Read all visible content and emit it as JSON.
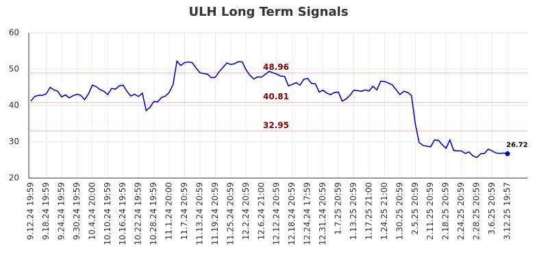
{
  "chart_data": {
    "type": "line",
    "title": "ULH Long Term Signals",
    "categories": [
      "9.12.24 19:59",
      null,
      null,
      null,
      "9.18.24 19:59",
      null,
      null,
      null,
      "9.24.24 19:59",
      null,
      null,
      null,
      "9.30.24 19:59",
      null,
      null,
      null,
      "10.4.24 20:00",
      null,
      null,
      null,
      "10.10.24 19:59",
      null,
      null,
      null,
      "10.16.24 19:59",
      null,
      null,
      null,
      "10.22.24 19:59",
      null,
      null,
      null,
      "10.28.24 19:59",
      null,
      null,
      null,
      "11.1.24 20:00",
      null,
      null,
      null,
      "11.7.24 20:59",
      null,
      null,
      null,
      "11.13.24 20:59",
      null,
      null,
      null,
      "11.19.24 20:59",
      null,
      null,
      null,
      "11.25.24 20:59",
      null,
      null,
      null,
      "12.2.24 20:59",
      null,
      null,
      null,
      "12.6.24 21:00",
      null,
      null,
      null,
      "12.12.24 20:59",
      null,
      null,
      null,
      "12.18.24 20:59",
      null,
      null,
      null,
      "12.24.24 17:59",
      null,
      null,
      null,
      "12.31.24 20:59",
      null,
      null,
      null,
      "1.7.25 20:59",
      null,
      null,
      null,
      "1.13.25 20:59",
      null,
      null,
      null,
      "1.17.25 21:00",
      null,
      null,
      null,
      "1.24.25 21:00",
      null,
      null,
      null,
      "1.30.25 20:59",
      null,
      null,
      null,
      "2.5.25 20:59",
      null,
      null,
      null,
      "2.11.25 20:59",
      null,
      null,
      null,
      "2.18.25 20:59",
      null,
      null,
      null,
      "2.24.25 20:59",
      null,
      null,
      null,
      "2.28.25 20:59",
      null,
      null,
      null,
      "3.6.25 20:59",
      null,
      null,
      null,
      "3.12.25 19:57"
    ],
    "series": [
      {
        "color": "#0000cc",
        "values": [
          41.2,
          42.5,
          42.8,
          42.8,
          43.2,
          45.0,
          44.3,
          43.9,
          42.4,
          42.9,
          42.1,
          42.7,
          43.1,
          42.8,
          41.6,
          43.2,
          45.6,
          45.2,
          44.4,
          43.9,
          43.0,
          44.7,
          44.5,
          45.4,
          45.6,
          43.9,
          42.6,
          43.1,
          42.5,
          43.4,
          38.6,
          39.5,
          41.1,
          41.0,
          42.2,
          42.6,
          43.6,
          45.8,
          52.2,
          51.0,
          51.8,
          52.0,
          51.8,
          50.3,
          49.0,
          48.8,
          48.6,
          47.6,
          47.8,
          49.3,
          50.5,
          51.7,
          51.3,
          51.5,
          52.1,
          52.0,
          49.8,
          48.3,
          47.3,
          47.9,
          47.8,
          48.6,
          49.4,
          49.0,
          48.6,
          48.1,
          48.0,
          45.4,
          45.8,
          46.3,
          45.6,
          47.2,
          47.5,
          46.1,
          46.0,
          43.7,
          44.2,
          43.4,
          43.0,
          43.6,
          43.7,
          41.2,
          41.8,
          42.8,
          44.2,
          44.1,
          43.9,
          44.3,
          44.0,
          45.3,
          44.3,
          46.7,
          46.6,
          46.2,
          45.7,
          44.4,
          43.0,
          43.9,
          43.6,
          42.8,
          35.0,
          29.8,
          29.0,
          28.8,
          28.6,
          30.5,
          30.4,
          29.2,
          28.2,
          30.5,
          27.6,
          27.5,
          27.5,
          26.8,
          27.2,
          26.1,
          25.7,
          26.7,
          26.8,
          28.0,
          27.5,
          26.9,
          26.8,
          26.9,
          26.72
        ]
      }
    ],
    "hlines": [
      {
        "value": 48.96,
        "color": "#ffbbbb"
      },
      {
        "value": 40.81,
        "color": "#ffbbbb"
      },
      {
        "value": 32.95,
        "color": "#ffbbbb"
      }
    ],
    "ylim": [
      20,
      60
    ],
    "yticks": [
      20,
      30,
      40,
      50,
      60
    ],
    "grid": true
  }
}
